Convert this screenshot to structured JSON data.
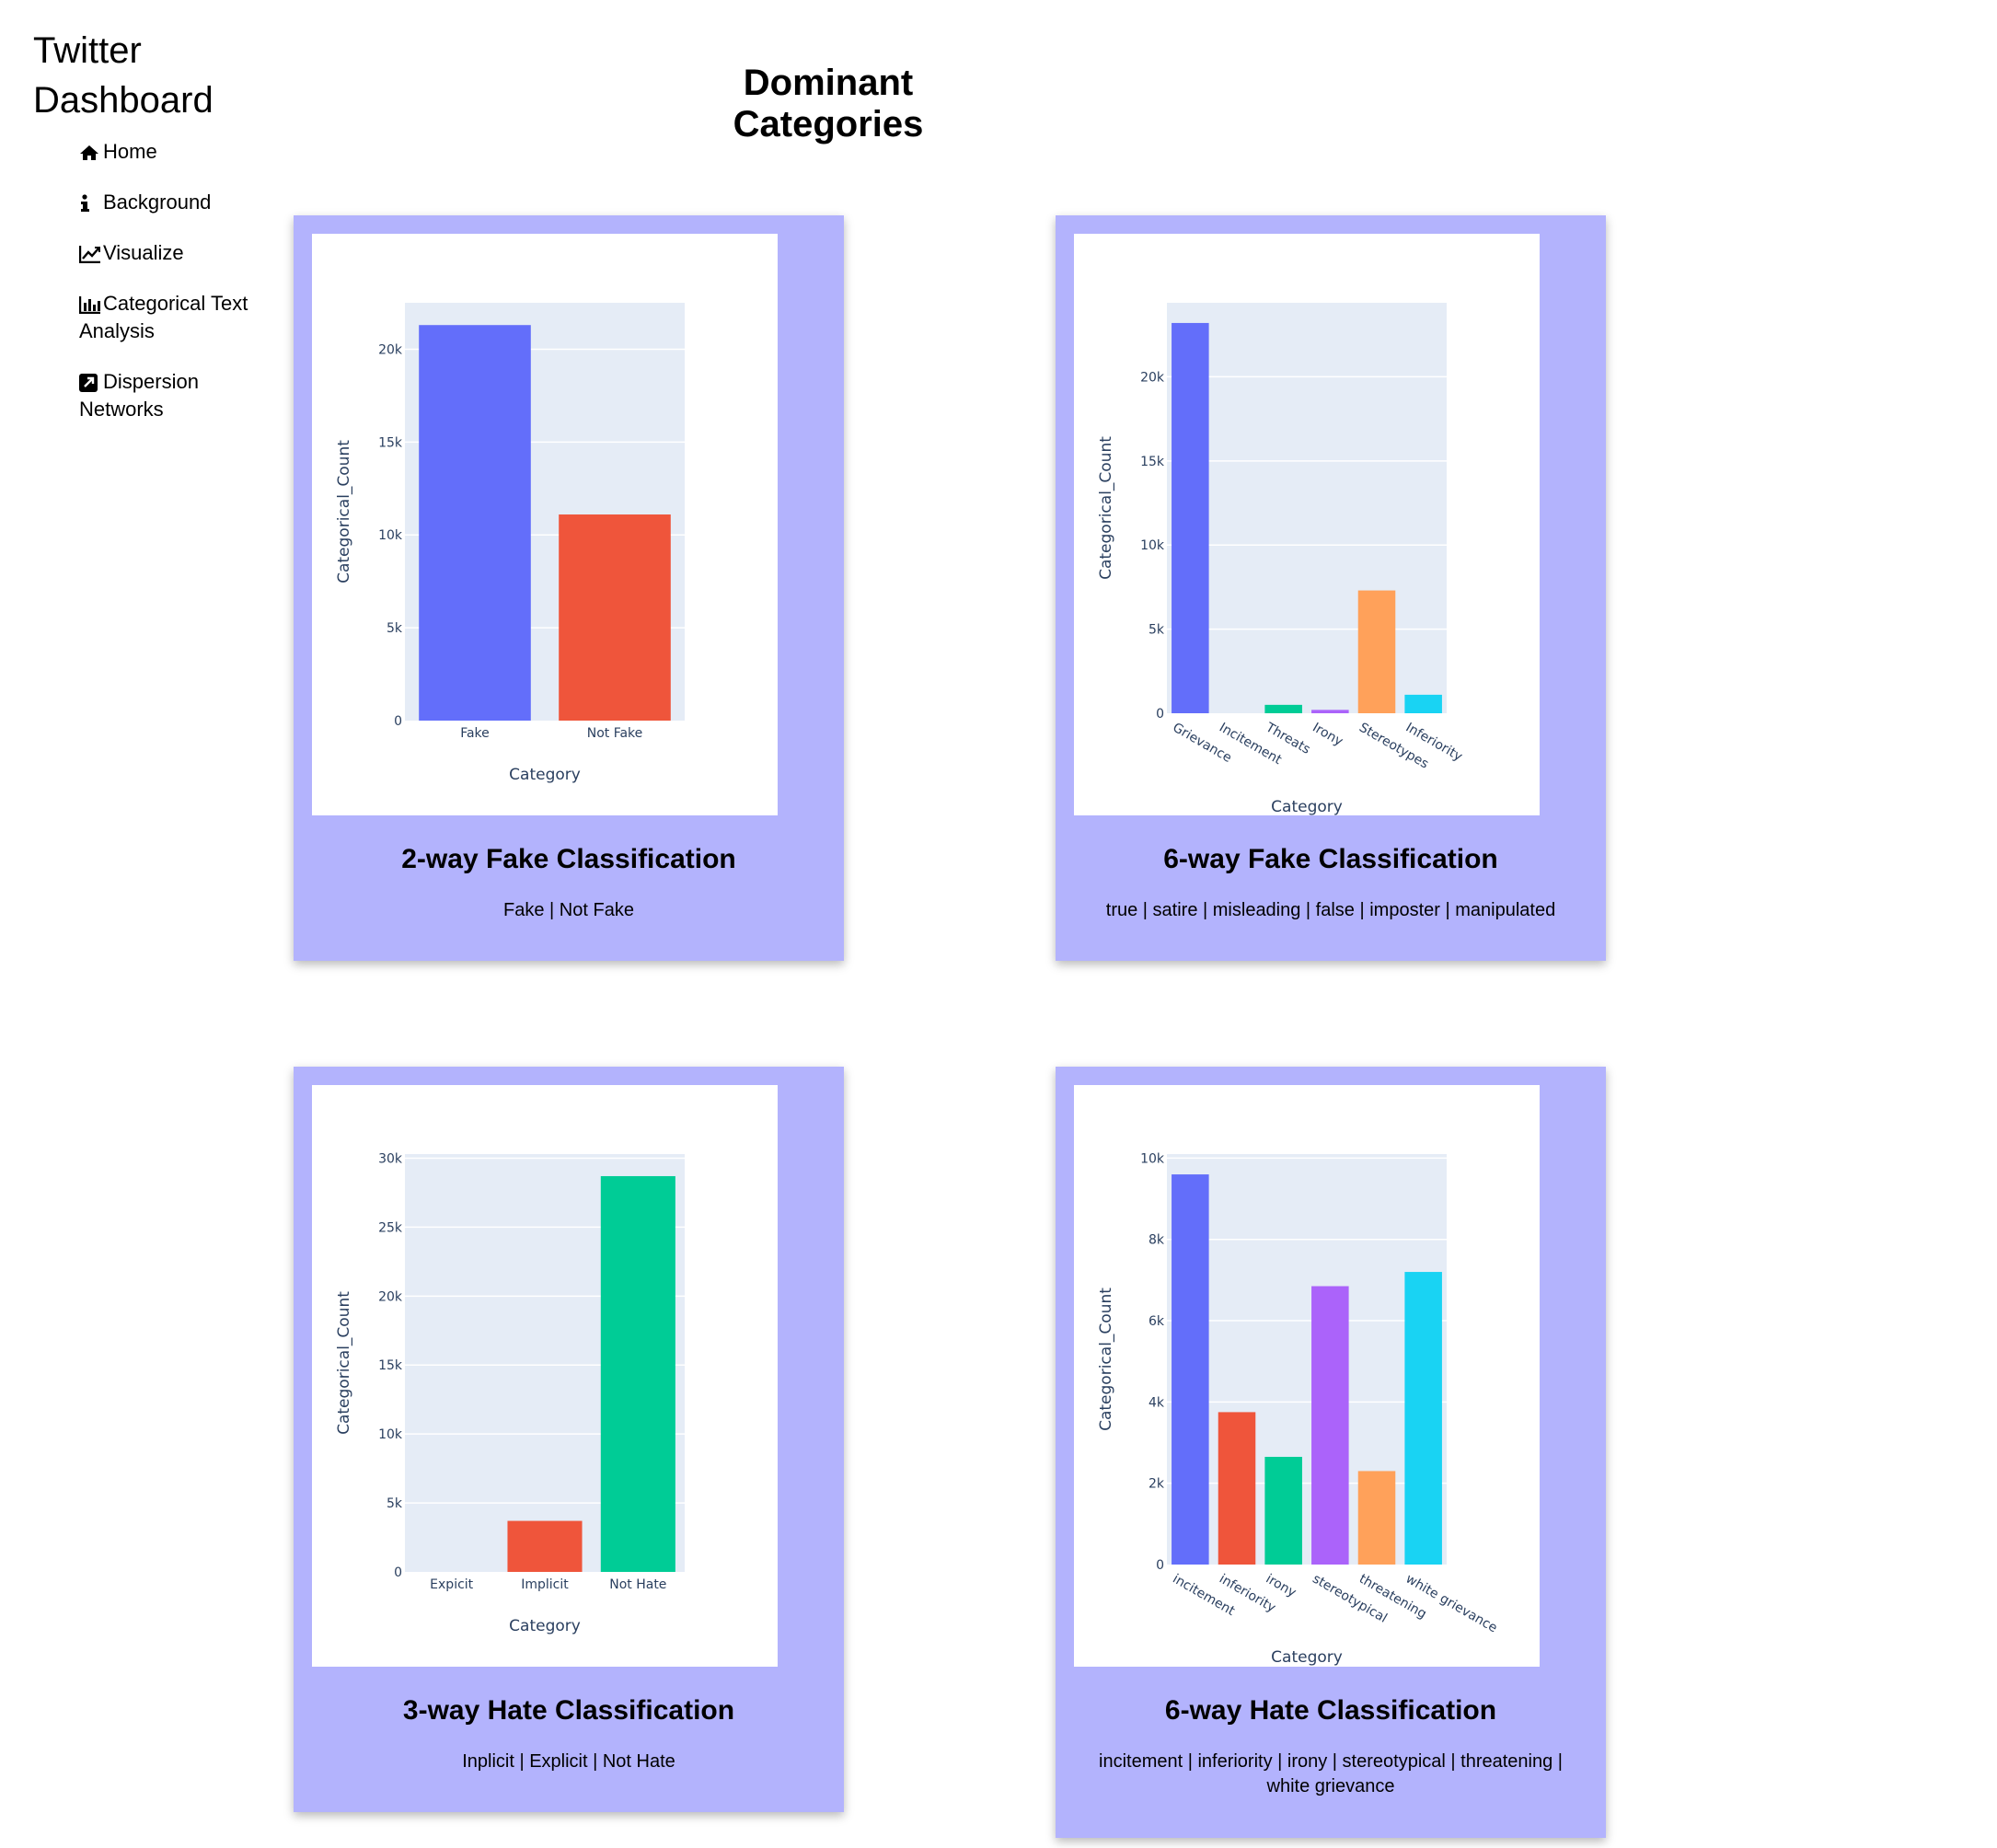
{
  "sidebar": {
    "title": "Twitter Dashboard",
    "nav": [
      {
        "label": "Home",
        "icon": "home-icon"
      },
      {
        "label": "Background",
        "icon": "info-icon"
      },
      {
        "label": "Visualize",
        "icon": "line-chart-icon"
      },
      {
        "label": "Categorical Text Analysis",
        "icon": "bar-chart-icon"
      },
      {
        "label": "Dispersion Networks",
        "icon": "external-link-square-icon"
      }
    ]
  },
  "main": {
    "title": "Dominant Categories",
    "cards": [
      {
        "title": "2-way Fake Classification",
        "subtitle": "Fake | Not Fake"
      },
      {
        "title": "6-way Fake Classification",
        "subtitle": "true | satire | misleading | false | imposter | manipulated"
      },
      {
        "title": "3-way Hate Classification",
        "subtitle": "Inplicit | Explicit | Not Hate"
      },
      {
        "title": "6-way Hate Classification",
        "subtitle": "incitement | inferiority | irony | stereotypical | threatening | white grievance"
      }
    ]
  },
  "colors": {
    "card_background": "#b3b3fd",
    "plot_background": "#e5ecf6",
    "series_palette": [
      "#636efa",
      "#ef553b",
      "#00cc96",
      "#ab63fa",
      "#ffa15a",
      "#19d3f3"
    ]
  },
  "chart_data": [
    {
      "type": "bar",
      "categories": [
        "Fake",
        "Not Fake"
      ],
      "values": [
        21300,
        11100
      ],
      "xlabel": "Category",
      "ylabel": "Categorical_Count",
      "ylim": [
        0,
        22500
      ],
      "yticks": [
        0,
        5000,
        10000,
        15000,
        20000
      ],
      "ytick_labels": [
        "0",
        "5k",
        "10k",
        "15k",
        "20k"
      ],
      "grid": true
    },
    {
      "type": "bar",
      "categories": [
        "Grievance",
        "Incitement",
        "Threats",
        "Irony",
        "Stereotypes",
        "Inferiority"
      ],
      "values": [
        23200,
        0,
        500,
        200,
        7300,
        1100
      ],
      "xlabel": "Category",
      "ylabel": "Categorical_Count",
      "ylim": [
        0,
        24400
      ],
      "yticks": [
        0,
        5000,
        10000,
        15000,
        20000
      ],
      "ytick_labels": [
        "0",
        "5k",
        "10k",
        "15k",
        "20k"
      ],
      "grid": true
    },
    {
      "type": "bar",
      "categories": [
        "Expicit",
        "Implicit",
        "Not Hate"
      ],
      "values": [
        0,
        3700,
        28700
      ],
      "xlabel": "Category",
      "ylabel": "Categorical_Count",
      "ylim": [
        0,
        30300
      ],
      "yticks": [
        0,
        5000,
        10000,
        15000,
        20000,
        25000,
        30000
      ],
      "ytick_labels": [
        "0",
        "5k",
        "10k",
        "15k",
        "20k",
        "25k",
        "30k"
      ],
      "grid": true
    },
    {
      "type": "bar",
      "categories": [
        "incitement",
        "inferiority",
        "irony",
        "stereotypical",
        "threatening",
        "white grievance"
      ],
      "values": [
        9600,
        3750,
        2650,
        6850,
        2300,
        7200
      ],
      "xlabel": "Category",
      "ylabel": "Categorical_Count",
      "ylim": [
        0,
        10100
      ],
      "yticks": [
        0,
        2000,
        4000,
        6000,
        8000,
        10000
      ],
      "ytick_labels": [
        "0",
        "2k",
        "4k",
        "6k",
        "8k",
        "10k"
      ],
      "grid": true
    }
  ]
}
